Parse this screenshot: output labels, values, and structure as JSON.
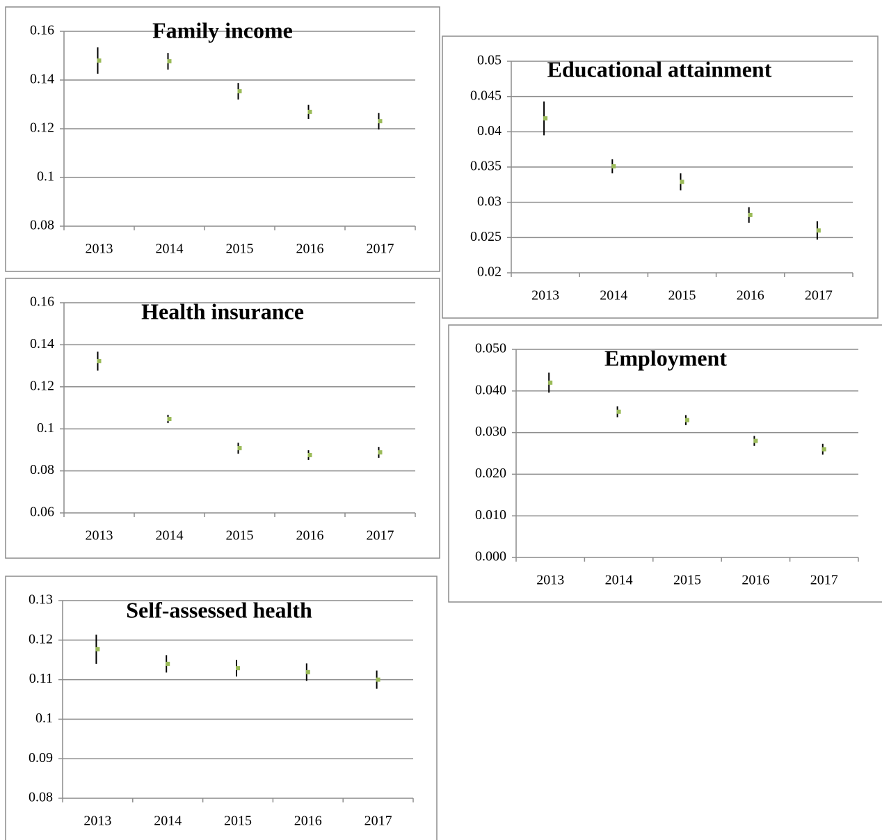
{
  "chart_data": [
    {
      "type": "errorbar",
      "title": "Family income",
      "categories": [
        "2013",
        "2014",
        "2015",
        "2016",
        "2017"
      ],
      "values": [
        0.148,
        0.1477,
        0.1354,
        0.1269,
        0.1231
      ],
      "errors": [
        0.0054,
        0.0034,
        0.0034,
        0.0029,
        0.0034
      ],
      "color": "#9bbb59",
      "error_color": "#000000",
      "ylim": [
        0.08,
        0.16
      ],
      "yticks": [
        0.08,
        0.1,
        0.12,
        0.14,
        0.16
      ],
      "grid": true
    },
    {
      "type": "errorbar",
      "title": "Educational attainment",
      "categories": [
        "2013",
        "2014",
        "2015",
        "2016",
        "2017"
      ],
      "values": [
        0.0419,
        0.0351,
        0.0329,
        0.0282,
        0.026
      ],
      "errors": [
        0.0024,
        0.001,
        0.0012,
        0.0011,
        0.0013
      ],
      "color": "#9bbb59",
      "error_color": "#000000",
      "ylim": [
        0.02,
        0.05
      ],
      "yticks": [
        0.02,
        0.025,
        0.03,
        0.035,
        0.04,
        0.045,
        0.05
      ],
      "grid": true
    },
    {
      "type": "errorbar",
      "title": "Health insurance",
      "categories": [
        "2013",
        "2014",
        "2015",
        "2016",
        "2017"
      ],
      "values": [
        0.1322,
        0.1047,
        0.0908,
        0.0875,
        0.0888
      ],
      "errors": [
        0.0045,
        0.002,
        0.0026,
        0.0023,
        0.0026
      ],
      "color": "#9bbb59",
      "error_color": "#000000",
      "ylim": [
        0.06,
        0.16
      ],
      "yticks": [
        0.06,
        0.08,
        0.1,
        0.12,
        0.14,
        0.16
      ],
      "grid": true
    },
    {
      "type": "errorbar",
      "title": "Employment",
      "categories": [
        "2013",
        "2014",
        "2015",
        "2016",
        "2017"
      ],
      "values": [
        0.042,
        0.035,
        0.033,
        0.028,
        0.026
      ],
      "errors": [
        0.0024,
        0.0013,
        0.0012,
        0.0012,
        0.0013
      ],
      "color": "#9bbb59",
      "error_color": "#000000",
      "ylim": [
        0,
        0.05
      ],
      "yticks": [
        {
          "value": 0,
          "label": "0.000"
        },
        {
          "value": 0.01,
          "label": "0.010"
        },
        {
          "value": 0.02,
          "label": "0.020"
        },
        {
          "value": 0.03,
          "label": "0.030"
        },
        {
          "value": 0.04,
          "label": "0.040"
        },
        {
          "value": 0.05,
          "label": "0.050"
        }
      ],
      "grid": true
    },
    {
      "type": "errorbar",
      "title": "Self-assessed health",
      "categories": [
        "2013",
        "2014",
        "2015",
        "2016",
        "2017"
      ],
      "values": [
        0.1177,
        0.114,
        0.1129,
        0.1119,
        0.11
      ],
      "errors": [
        0.0037,
        0.0022,
        0.0021,
        0.0022,
        0.0023
      ],
      "color": "#9bbb59",
      "error_color": "#000000",
      "ylim": [
        0.08,
        0.13
      ],
      "yticks": [
        0.08,
        0.09,
        0.1,
        0.11,
        0.12,
        0.13
      ],
      "grid": true
    }
  ]
}
